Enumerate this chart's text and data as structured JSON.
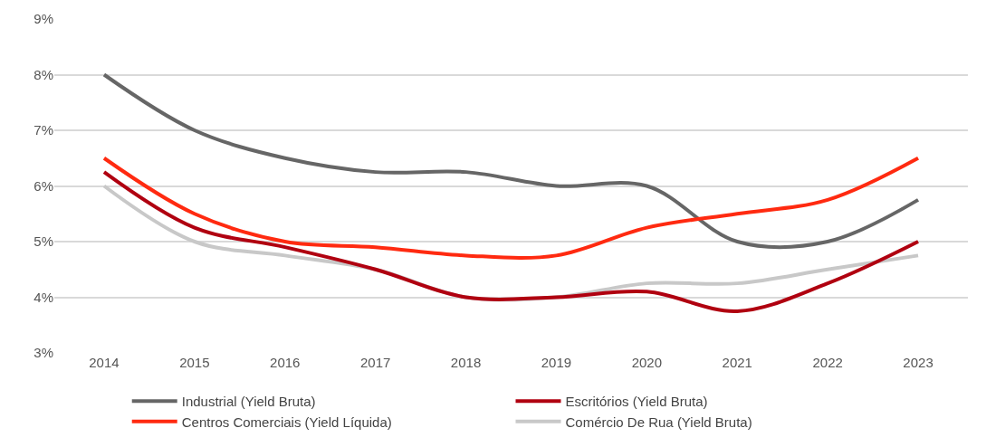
{
  "chart_data": {
    "type": "line",
    "categories": [
      "2014",
      "2015",
      "2016",
      "2017",
      "2018",
      "2019",
      "2020",
      "2021",
      "2022",
      "2023"
    ],
    "series": [
      {
        "name": "Industrial (Yield Bruta)",
        "color": "#666666",
        "values": [
          8,
          7,
          6.5,
          6.25,
          6.25,
          6,
          6,
          5,
          5,
          5.75
        ]
      },
      {
        "name": "Escritórios (Yield Bruta)",
        "color": "#b00010",
        "values": [
          6.25,
          5.25,
          4.9,
          4.5,
          4,
          4,
          4.1,
          3.75,
          4.25,
          5
        ]
      },
      {
        "name": "Centros Comerciais (Yield Líquida)",
        "color": "#ff2a10",
        "values": [
          6.5,
          5.5,
          5,
          4.9,
          4.75,
          4.75,
          5.25,
          5.5,
          5.75,
          6.5
        ]
      },
      {
        "name": "Comércio De Rua (Yield Bruta)",
        "color": "#c8c8c8",
        "values": [
          6,
          5,
          4.75,
          4.5,
          4,
          4,
          4.25,
          4.25,
          4.5,
          4.75
        ]
      }
    ],
    "ylim": [
      3,
      9
    ],
    "yticks": [
      {
        "value": 3,
        "label": "3%"
      },
      {
        "value": 4,
        "label": "4%"
      },
      {
        "value": 5,
        "label": "5%"
      },
      {
        "value": 6,
        "label": "6%"
      },
      {
        "value": 7,
        "label": "7%"
      },
      {
        "value": 8,
        "label": "8%"
      },
      {
        "value": 9,
        "label": "9%"
      }
    ],
    "grid": "y",
    "legend": "bottom",
    "marker": "none",
    "line_style": "solid"
  }
}
